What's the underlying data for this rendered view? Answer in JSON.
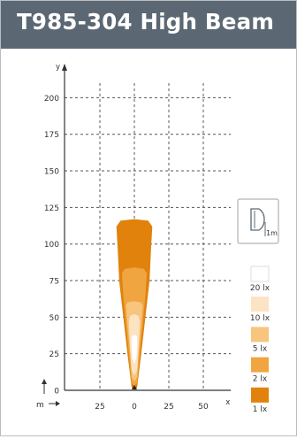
{
  "header": {
    "title": "T985-304 High Beam"
  },
  "chart_data": {
    "type": "area",
    "title": "T985-304 High Beam",
    "xlabel": "x",
    "ylabel": "y",
    "unit_label": "m",
    "xlim": [
      -50,
      70
    ],
    "ylim": [
      0,
      210
    ],
    "xticks": [
      -25,
      0,
      25,
      50
    ],
    "xtick_labels": [
      "25",
      "0",
      "25",
      "50"
    ],
    "yticks": [
      0,
      25,
      50,
      75,
      100,
      125,
      150,
      175,
      200
    ],
    "grid": true,
    "legend_position": "right",
    "scale_icon_label": "1m",
    "series": [
      {
        "name": "1 lx",
        "color": "#e0820c",
        "outline": [
          [
            0,
            0
          ],
          [
            -2,
            2
          ],
          [
            -5,
            25
          ],
          [
            -8,
            50
          ],
          [
            -11,
            75
          ],
          [
            -12,
            95
          ],
          [
            -13,
            112
          ],
          [
            -10,
            116
          ],
          [
            0,
            117
          ],
          [
            10,
            116
          ],
          [
            13,
            112
          ],
          [
            12,
            95
          ],
          [
            11,
            75
          ],
          [
            8,
            50
          ],
          [
            5,
            25
          ],
          [
            2,
            2
          ]
        ]
      },
      {
        "name": "2 lx",
        "color": "#f0a540",
        "outline": [
          [
            0,
            3
          ],
          [
            -2,
            5
          ],
          [
            -4,
            25
          ],
          [
            -6,
            45
          ],
          [
            -8,
            65
          ],
          [
            -9,
            80
          ],
          [
            -7,
            83
          ],
          [
            0,
            84
          ],
          [
            7,
            83
          ],
          [
            9,
            80
          ],
          [
            8,
            65
          ],
          [
            6,
            45
          ],
          [
            4,
            25
          ],
          [
            2,
            5
          ]
        ]
      },
      {
        "name": "5 lx",
        "color": "#f7c57d",
        "outline": [
          [
            0,
            6
          ],
          [
            -2,
            9
          ],
          [
            -3,
            25
          ],
          [
            -5,
            45
          ],
          [
            -6,
            58
          ],
          [
            -5,
            60
          ],
          [
            0,
            61
          ],
          [
            5,
            60
          ],
          [
            6,
            58
          ],
          [
            5,
            45
          ],
          [
            3,
            25
          ],
          [
            2,
            9
          ]
        ]
      },
      {
        "name": "10 lx",
        "color": "#fbe3c4",
        "outline": [
          [
            0,
            10
          ],
          [
            -2,
            14
          ],
          [
            -3,
            28
          ],
          [
            -4,
            47
          ],
          [
            -3,
            51
          ],
          [
            0,
            52
          ],
          [
            3,
            51
          ],
          [
            4,
            47
          ],
          [
            3,
            28
          ],
          [
            2,
            14
          ]
        ]
      },
      {
        "name": "20 lx",
        "color": "#ffffff",
        "outline": [
          [
            0,
            18
          ],
          [
            -1.5,
            22
          ],
          [
            -2,
            30
          ],
          [
            -2,
            37
          ],
          [
            0,
            38
          ],
          [
            2,
            37
          ],
          [
            2,
            30
          ],
          [
            1.5,
            22
          ]
        ]
      }
    ]
  }
}
